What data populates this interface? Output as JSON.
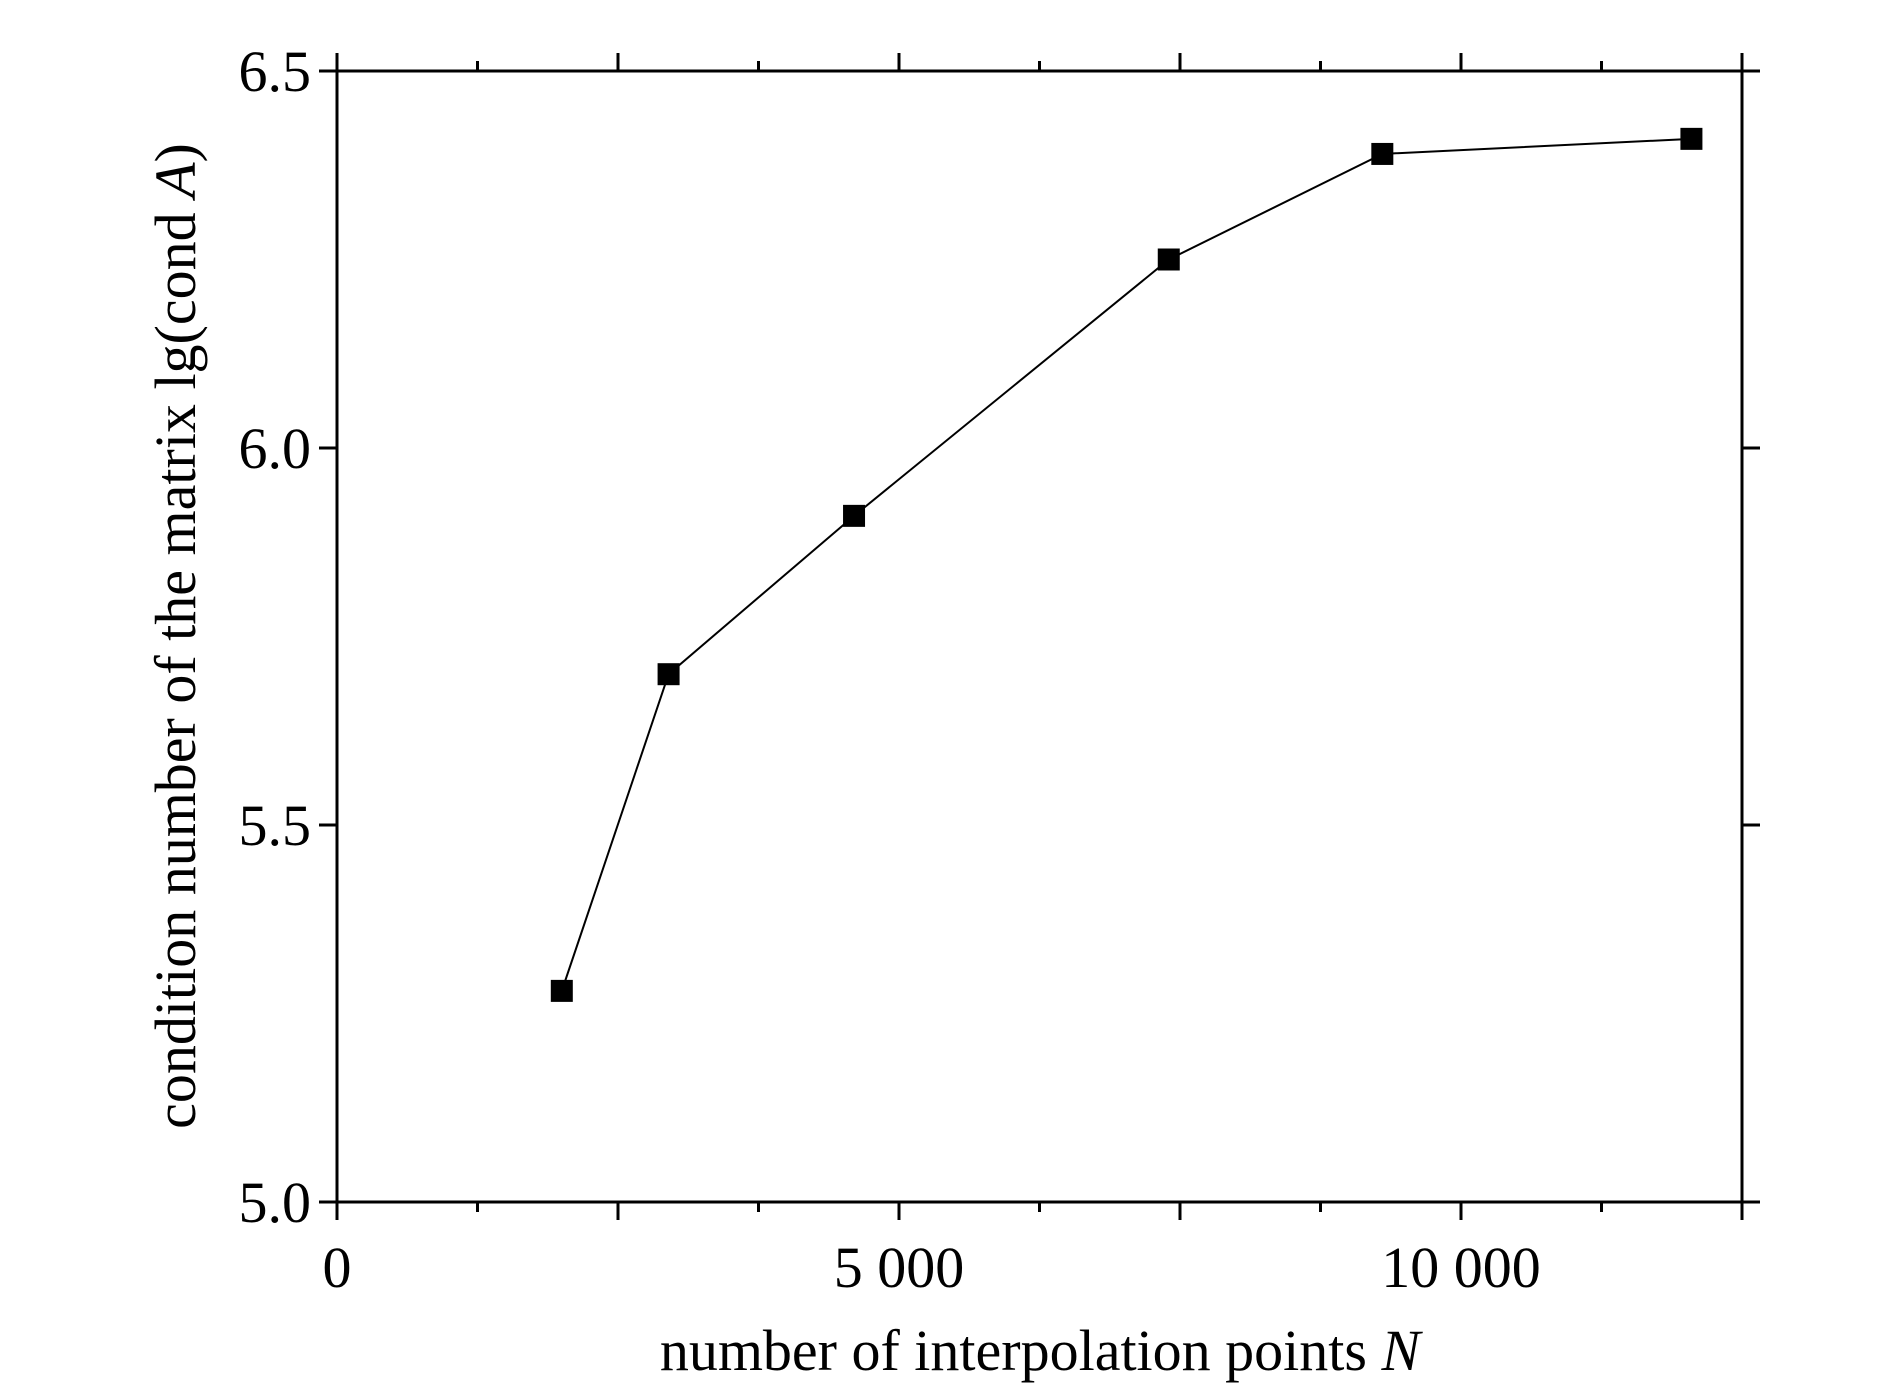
{
  "chart_data": {
    "type": "line",
    "title": "",
    "xlabel": "number of interpolation points",
    "xlabel_var": "N",
    "ylabel": "condition number of the matrix lg(cond",
    "ylabel_var": "A",
    "ylabel_close": ")",
    "xlim": [
      0,
      12500
    ],
    "ylim": [
      5.0,
      6.5
    ],
    "x_ticks": [
      0,
      5000,
      10000
    ],
    "x_tick_labels": [
      "0",
      "5 000",
      "10 000"
    ],
    "y_ticks": [
      5.0,
      5.5,
      6.0,
      6.5
    ],
    "y_tick_labels": [
      "5.0",
      "5.5",
      "6.0",
      "6.5"
    ],
    "grid": false,
    "marker": "square",
    "color": "#000000",
    "series": [
      {
        "x": [
          2000,
          2950,
          4600,
          7400,
          9300,
          12050
        ],
        "y": [
          5.28,
          5.7,
          5.91,
          6.25,
          6.39,
          6.41
        ]
      }
    ]
  }
}
